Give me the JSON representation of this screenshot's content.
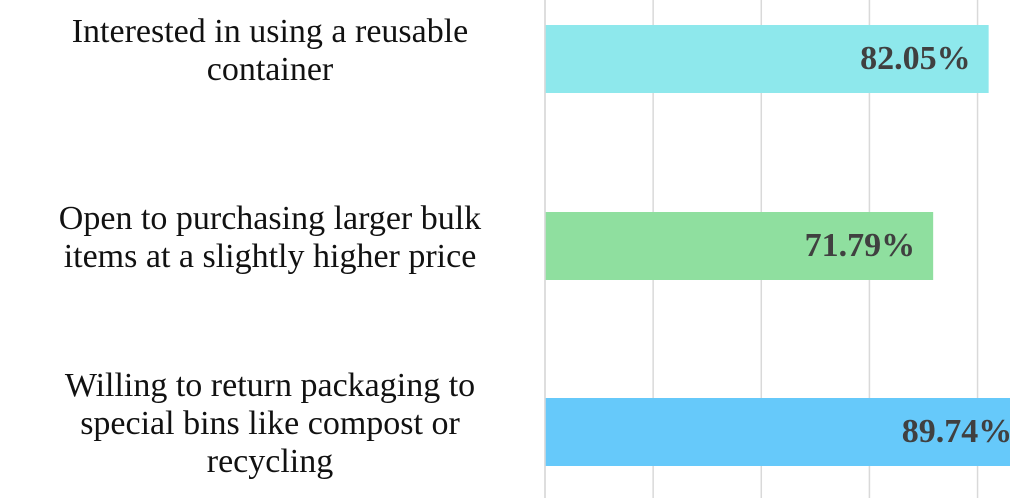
{
  "chart_data": {
    "type": "bar",
    "orientation": "horizontal",
    "categories": [
      "Interested in using a reusable container",
      "Open to purchasing larger bulk items at a slightly higher price",
      "Willing to return packaging to special bins like compost or recycling"
    ],
    "values": [
      82.05,
      71.79,
      89.74
    ],
    "value_labels": [
      "82.05%",
      "71.79%",
      "89.74%"
    ],
    "colors": [
      "#8ee8ec",
      "#8fdf9f",
      "#66c9fa"
    ],
    "xlim": [
      0,
      86
    ],
    "xticks": [
      0,
      20,
      40,
      60,
      80
    ],
    "grid": true
  }
}
